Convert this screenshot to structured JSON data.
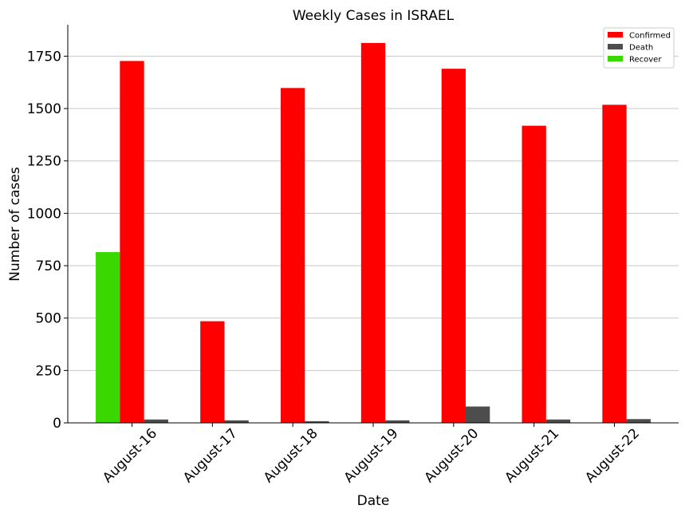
{
  "chart_data": {
    "type": "bar",
    "title": "Weekly Cases in ISRAEL",
    "xlabel": "Date",
    "ylabel": "Number of cases",
    "categories": [
      "August-16",
      "August-17",
      "August-18",
      "August-19",
      "August-20",
      "August-21",
      "August-22"
    ],
    "ylim": [
      0,
      1900
    ],
    "yticks": [
      0,
      250,
      500,
      750,
      1000,
      1250,
      1500,
      1750
    ],
    "grid": "y",
    "legend_position": "top-right",
    "series": [
      {
        "name": "Recover",
        "color": "#3ad800",
        "values": [
          815,
          0,
          0,
          0,
          0,
          0,
          0
        ]
      },
      {
        "name": "Confirmed",
        "color": "#ff0000",
        "values": [
          1727,
          485,
          1598,
          1813,
          1690,
          1418,
          1518
        ]
      },
      {
        "name": "Death",
        "color": "#4d4d4d",
        "values": [
          16,
          12,
          8,
          12,
          78,
          16,
          18
        ]
      }
    ],
    "legend_order": [
      "Confirmed",
      "Death",
      "Recover"
    ]
  }
}
